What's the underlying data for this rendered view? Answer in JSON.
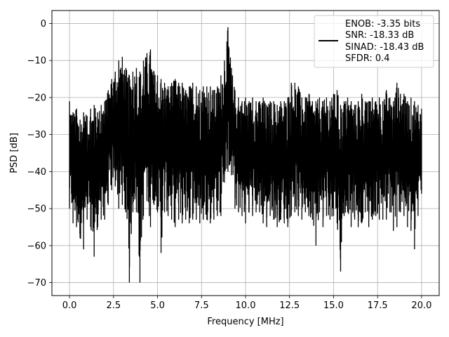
{
  "chart_data": {
    "type": "line",
    "title": "",
    "xlabel": "Frequency [MHz]",
    "ylabel": "PSD [dB]",
    "xlim": [
      -1.0,
      21.0
    ],
    "ylim": [
      -73.5,
      3.5
    ],
    "xticks": [
      0.0,
      2.5,
      5.0,
      7.5,
      10.0,
      12.5,
      15.0,
      17.5,
      20.0
    ],
    "xtick_labels": [
      "0.0",
      "2.5",
      "5.0",
      "7.5",
      "10.0",
      "12.5",
      "15.0",
      "17.5",
      "20.0"
    ],
    "yticks": [
      0,
      -10,
      -20,
      -30,
      -40,
      -50,
      -60,
      -70
    ],
    "ytick_labels": [
      "0",
      "−10",
      "−20",
      "−30",
      "−40",
      "−50",
      "−60",
      "−70"
    ],
    "grid": true,
    "legend": {
      "placement": "top-right",
      "entries": [
        "ENOB: -3.35 bits",
        "SNR: -18.33 dB",
        "SINAD: -18.43 dB",
        "SFDR: 0.4"
      ]
    },
    "series": [
      {
        "color": "#000000",
        "x": [
          0.0,
          0.2,
          0.4,
          0.6,
          0.8,
          1.0,
          1.2,
          1.4,
          1.6,
          1.8,
          2.0,
          2.2,
          2.4,
          2.6,
          2.8,
          3.0,
          3.2,
          3.4,
          3.6,
          3.8,
          4.0,
          4.2,
          4.4,
          4.6,
          4.8,
          5.0,
          5.2,
          5.4,
          5.6,
          5.8,
          6.0,
          6.2,
          6.4,
          6.6,
          6.8,
          7.0,
          7.2,
          7.4,
          7.6,
          7.8,
          8.0,
          8.2,
          8.4,
          8.6,
          8.8,
          9.0,
          9.2,
          9.4,
          9.6,
          9.8,
          10.0,
          10.2,
          10.4,
          10.6,
          10.8,
          11.0,
          11.2,
          11.4,
          11.6,
          11.8,
          12.0,
          12.2,
          12.4,
          12.6,
          12.8,
          13.0,
          13.2,
          13.4,
          13.6,
          13.8,
          14.0,
          14.2,
          14.4,
          14.6,
          14.8,
          15.0,
          15.2,
          15.4,
          15.6,
          15.8,
          16.0,
          16.2,
          16.4,
          16.6,
          16.8,
          17.0,
          17.2,
          17.4,
          17.6,
          17.8,
          18.0,
          18.2,
          18.4,
          18.6,
          18.8,
          19.0,
          19.2,
          19.4,
          19.6,
          19.8,
          20.0
        ],
        "y_upper": [
          -21,
          -24,
          -23,
          -26,
          -24,
          -25,
          -23,
          -22,
          -24,
          -22,
          -21,
          -18,
          -15,
          -13,
          -10,
          -9,
          -12,
          -14,
          -13,
          -12,
          -13,
          -10,
          -8,
          -7,
          -13,
          -14,
          -15,
          -16,
          -17,
          -16,
          -15,
          -16,
          -16,
          -18,
          -17,
          -16,
          -17,
          -18,
          -17,
          -17,
          -17,
          -18,
          -17,
          -14,
          -10,
          -1,
          -12,
          -18,
          -20,
          -21,
          -20,
          -21,
          -20,
          -21,
          -21,
          -20,
          -22,
          -21,
          -21,
          -22,
          -21,
          -21,
          -20,
          -16,
          -16,
          -17,
          -20,
          -20,
          -19,
          -21,
          -21,
          -20,
          -21,
          -20,
          -21,
          -19,
          -18,
          -22,
          -21,
          -20,
          -21,
          -22,
          -21,
          -19,
          -21,
          -21,
          -20,
          -21,
          -20,
          -21,
          -18,
          -20,
          -21,
          -16,
          -19,
          -19,
          -21,
          -20,
          -21,
          -22,
          -23
        ],
        "y_lower": [
          -50,
          -54,
          -55,
          -58,
          -61,
          -53,
          -55,
          -63,
          -55,
          -53,
          -53,
          -49,
          -45,
          -44,
          -50,
          -49,
          -51,
          -70,
          -51,
          -51,
          -70,
          -52,
          -48,
          -55,
          -49,
          -51,
          -62,
          -51,
          -52,
          -53,
          -55,
          -53,
          -54,
          -53,
          -54,
          -53,
          -53,
          -54,
          -53,
          -53,
          -54,
          -53,
          -52,
          -52,
          -43,
          -40,
          -41,
          -50,
          -51,
          -52,
          -54,
          -51,
          -52,
          -51,
          -51,
          -54,
          -55,
          -52,
          -53,
          -55,
          -53,
          -54,
          -55,
          -52,
          -51,
          -52,
          -53,
          -51,
          -52,
          -53,
          -60,
          -51,
          -55,
          -52,
          -53,
          -52,
          -54,
          -67,
          -52,
          -51,
          -55,
          -53,
          -55,
          -54,
          -51,
          -55,
          -53,
          -52,
          -53,
          -53,
          -53,
          -51,
          -56,
          -55,
          -51,
          -52,
          -55,
          -56,
          -61,
          -52,
          -46
        ]
      }
    ]
  }
}
